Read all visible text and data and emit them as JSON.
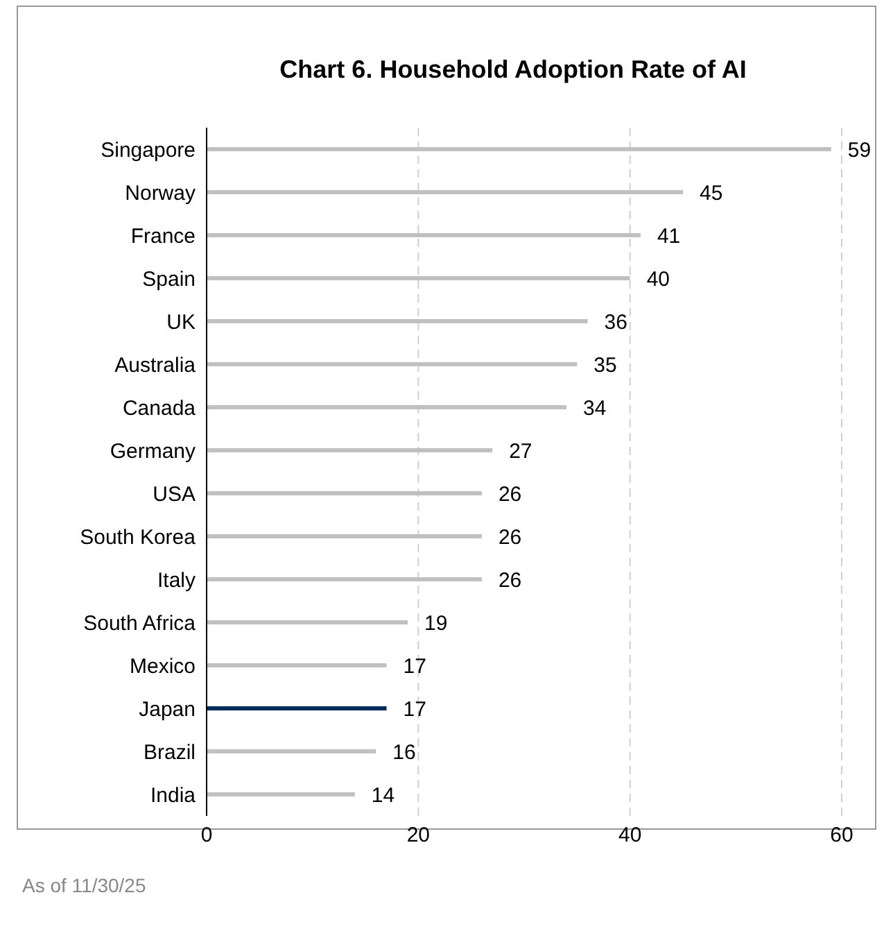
{
  "chart_data": {
    "type": "bar",
    "orientation": "horizontal",
    "title": "Chart 6. Household Adoption Rate of AI",
    "categories": [
      "Singapore",
      "Norway",
      "France",
      "Spain",
      "UK",
      "Australia",
      "Canada",
      "Germany",
      "USA",
      "South Korea",
      "Italy",
      "South Africa",
      "Mexico",
      "Japan",
      "Brazil",
      "India"
    ],
    "values": [
      59,
      45,
      41,
      40,
      36,
      35,
      34,
      27,
      26,
      26,
      26,
      19,
      17,
      17,
      16,
      14
    ],
    "colors": [
      "#c0c0c0",
      "#c0c0c0",
      "#c0c0c0",
      "#c0c0c0",
      "#c0c0c0",
      "#c0c0c0",
      "#c0c0c0",
      "#c0c0c0",
      "#c0c0c0",
      "#c0c0c0",
      "#c0c0c0",
      "#c0c0c0",
      "#c0c0c0",
      "#002b5c",
      "#c0c0c0",
      "#c0c0c0"
    ],
    "xlim": [
      0,
      60
    ],
    "xticks": [
      0,
      20,
      40,
      60
    ],
    "grid": "x",
    "data_labels": true,
    "annotations": [
      "As of 11/30/25"
    ]
  }
}
